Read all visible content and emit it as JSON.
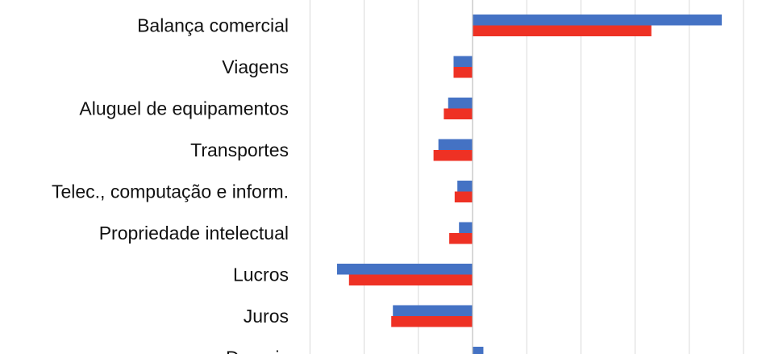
{
  "chart_data": {
    "type": "bar",
    "orientation": "horizontal",
    "categories": [
      "Balança comercial",
      "Viagens",
      "Aluguel de equipamentos",
      "Transportes",
      "Telec., computação e inform.",
      "Propriedade intelectual",
      "Lucros",
      "Juros",
      "Demais"
    ],
    "series": [
      {
        "color": "#4472C4",
        "values": [
          46,
          -3.5,
          -4.5,
          -6.3,
          -2.8,
          -2.5,
          -25,
          -14.7,
          2
        ]
      },
      {
        "color": "#EE3124",
        "values": [
          33,
          -3.5,
          -5.3,
          -7.2,
          -3.3,
          -4.3,
          -22.8,
          -15,
          0
        ]
      }
    ],
    "xlim": [
      -30,
      50
    ],
    "grid": true,
    "legend": "none"
  }
}
